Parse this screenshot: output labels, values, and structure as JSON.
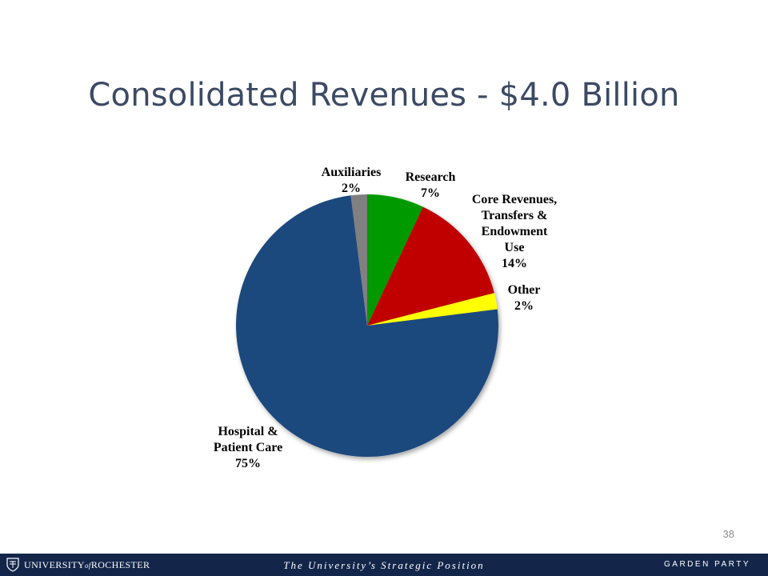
{
  "slide": {
    "title": "Consolidated Revenues - $4.0 Billion",
    "page_number": "38"
  },
  "footer": {
    "logo_main_1": "UNIVERSITY",
    "logo_of": "of",
    "logo_main_2": "ROCHESTER",
    "center_text": "The University’s Strategic Position",
    "right_text": "GARDEN PARTY"
  },
  "chart_data": {
    "type": "pie",
    "title": "Consolidated Revenues - $4.0 Billion",
    "start_angle_deg": -90,
    "direction": "clockwise",
    "slices": [
      {
        "label": "Research",
        "value": 7,
        "value_label": "7%",
        "color": "#009900",
        "label_lines": [
          "Research",
          "7%"
        ]
      },
      {
        "label": "Core Revenues, Transfers & Endowment Use",
        "value": 14,
        "value_label": "14%",
        "color": "#c00000",
        "label_lines": [
          "Core Revenues,",
          "Transfers &",
          "Endowment",
          "Use",
          "14%"
        ]
      },
      {
        "label": "Other",
        "value": 2,
        "value_label": "2%",
        "color": "#ffff00",
        "label_lines": [
          "Other",
          "2%"
        ]
      },
      {
        "label": "Hospital & Patient Care",
        "value": 75,
        "value_label": "75%",
        "color": "#1f497d",
        "label_lines": [
          "Hospital &",
          "Patient Care",
          "75%"
        ]
      },
      {
        "label": "Auxiliaries",
        "value": 2,
        "value_label": "2%",
        "color": "#808080",
        "label_lines": [
          "Auxiliaries",
          "2%"
        ]
      }
    ],
    "legend": "none"
  }
}
